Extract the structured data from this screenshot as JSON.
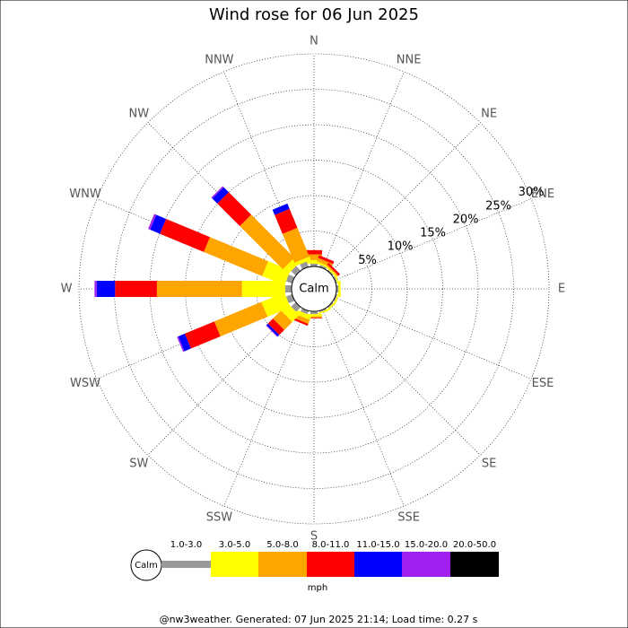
{
  "chart_data": {
    "type": "windrose",
    "title": "Wind rose for 06 Jun 2025",
    "footer": "@nw3weather. Generated: 07 Jun 2025 21:14; Load time: 0.27 s",
    "calm_label": "Calm",
    "unit_label": "mph",
    "categories": [
      "N",
      "NNE",
      "NE",
      "ENE",
      "E",
      "ESE",
      "SE",
      "SSE",
      "S",
      "SSW",
      "SW",
      "WSW",
      "W",
      "WNW",
      "NW",
      "NNW"
    ],
    "rlim": [
      0,
      30
    ],
    "rticks": [
      {
        "value": 5,
        "label": "5%"
      },
      {
        "value": 10,
        "label": "10%"
      },
      {
        "value": 15,
        "label": "15%"
      },
      {
        "value": 20,
        "label": "20%"
      },
      {
        "value": 25,
        "label": "25%"
      },
      {
        "value": 30,
        "label": "30%"
      }
    ],
    "series": [
      {
        "name": "1.0-3.0",
        "color": "#999999",
        "values": [
          0.4,
          0.3,
          0.2,
          0.2,
          0.3,
          0.2,
          0.2,
          0.2,
          0.4,
          0.5,
          0.9,
          0.9,
          0.9,
          0.9,
          0.9,
          0.8
        ]
      },
      {
        "name": "3.0-5.0",
        "color": "#ffff00",
        "values": [
          0.5,
          0.3,
          0.2,
          0.2,
          0.3,
          0.2,
          0.2,
          0.2,
          0.3,
          0.6,
          1.4,
          3.5,
          6.1,
          3.4,
          1.0,
          0.5
        ]
      },
      {
        "name": "5.0-8.0",
        "color": "#ffa500",
        "values": [
          0.8,
          0.5,
          0.2,
          0,
          0,
          0,
          0,
          0,
          0.2,
          0.6,
          1.6,
          7.2,
          12.0,
          8.9,
          8.6,
          4.4
        ]
      },
      {
        "name": "8.0-11.0",
        "color": "#ff0000",
        "values": [
          0.6,
          0.4,
          0.3,
          0,
          0,
          0,
          0,
          0,
          0.1,
          0.3,
          1.0,
          4.5,
          5.9,
          6.7,
          4.5,
          2.9
        ]
      },
      {
        "name": "11.0-15.0",
        "color": "#0000ff",
        "values": [
          0,
          0,
          0,
          0,
          0,
          0,
          0,
          0,
          0,
          0,
          0.3,
          1.0,
          2.6,
          1.5,
          1.0,
          0.8
        ]
      },
      {
        "name": "15.0-20.0",
        "color": "#a020f0",
        "values": [
          0,
          0,
          0,
          0,
          0,
          0,
          0,
          0,
          0,
          0,
          0.1,
          0.2,
          0.3,
          0.3,
          0.2,
          0
        ]
      },
      {
        "name": "20.0-50.0",
        "color": "#000000",
        "values": [
          0,
          0,
          0,
          0,
          0,
          0,
          0,
          0,
          0,
          0,
          0,
          0,
          0,
          0,
          0,
          0
        ]
      }
    ]
  }
}
